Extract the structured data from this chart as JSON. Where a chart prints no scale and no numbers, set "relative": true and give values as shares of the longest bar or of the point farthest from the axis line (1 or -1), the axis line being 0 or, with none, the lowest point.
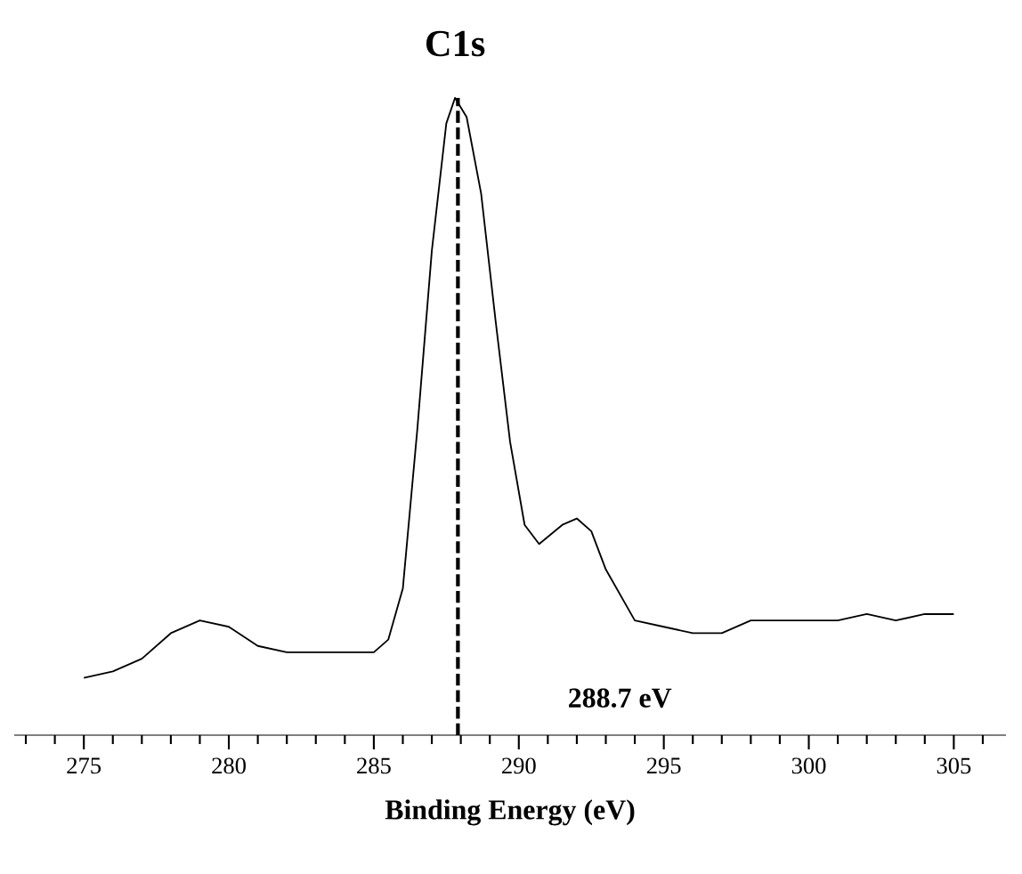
{
  "chart_data": {
    "type": "line",
    "title": "C1s",
    "xlabel": "Binding Energy (eV)",
    "relative": true,
    "color": "#000000",
    "x": [
      275,
      276,
      277,
      278,
      279,
      280,
      281,
      282,
      283,
      284,
      285,
      285.5,
      286,
      286.5,
      287,
      287.5,
      287.8,
      288.2,
      288.7,
      289.2,
      289.7,
      290.2,
      290.7,
      291.5,
      292,
      292.5,
      293,
      294,
      295,
      296,
      297,
      298,
      299,
      300,
      301,
      302,
      303,
      304,
      305
    ],
    "values": [
      0.09,
      0.1,
      0.12,
      0.16,
      0.18,
      0.17,
      0.14,
      0.13,
      0.13,
      0.13,
      0.13,
      0.15,
      0.23,
      0.48,
      0.76,
      0.96,
      1.0,
      0.97,
      0.85,
      0.65,
      0.46,
      0.33,
      0.3,
      0.33,
      0.34,
      0.32,
      0.26,
      0.18,
      0.17,
      0.16,
      0.16,
      0.18,
      0.18,
      0.18,
      0.18,
      0.19,
      0.18,
      0.19,
      0.19
    ],
    "xlim": [
      272.6,
      306.8
    ],
    "xticks": [
      {
        "value": 273,
        "label": null
      },
      {
        "value": 274,
        "label": null
      },
      275,
      {
        "value": 276,
        "label": null
      },
      {
        "value": 277,
        "label": null
      },
      {
        "value": 278,
        "label": null
      },
      {
        "value": 279,
        "label": null
      },
      280,
      {
        "value": 281,
        "label": null
      },
      {
        "value": 282,
        "label": null
      },
      {
        "value": 283,
        "label": null
      },
      {
        "value": 284,
        "label": null
      },
      285,
      {
        "value": 286,
        "label": null
      },
      {
        "value": 287,
        "label": null
      },
      {
        "value": 288,
        "label": null
      },
      {
        "value": 289,
        "label": null
      },
      290,
      {
        "value": 291,
        "label": null
      },
      {
        "value": 292,
        "label": null
      },
      {
        "value": 293,
        "label": null
      },
      {
        "value": 294,
        "label": null
      },
      295,
      {
        "value": 296,
        "label": null
      },
      {
        "value": 297,
        "label": null
      },
      {
        "value": 298,
        "label": null
      },
      {
        "value": 299,
        "label": null
      },
      300,
      {
        "value": 301,
        "label": null
      },
      {
        "value": 302,
        "label": null
      },
      {
        "value": 303,
        "label": null
      },
      {
        "value": 304,
        "label": null
      },
      305,
      {
        "value": 306,
        "label": null
      }
    ],
    "ref_lines": [
      {
        "axis": "x",
        "value": 287.9,
        "label": "288.7 eV",
        "line_style": "dashed",
        "color": "#000000"
      }
    ],
    "marker": "none"
  }
}
